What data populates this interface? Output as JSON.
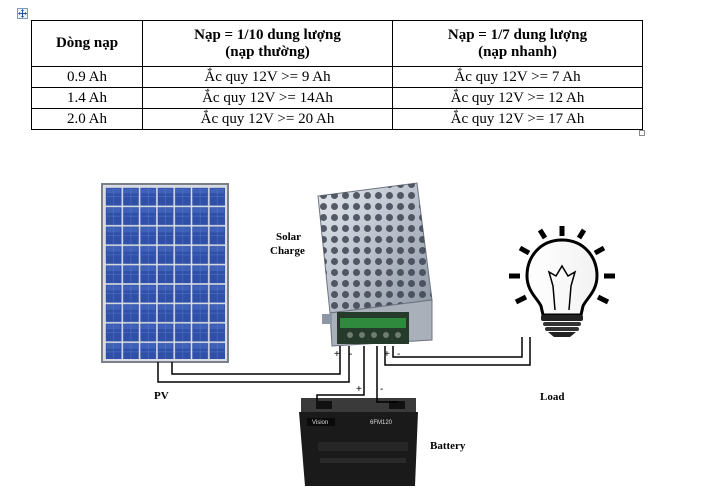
{
  "table": {
    "headers": [
      {
        "line1": "Dòng nạp",
        "line2": ""
      },
      {
        "line1": "Nạp = 1/10 dung lượng",
        "line2": "(nạp thường)"
      },
      {
        "line1": "Nạp = 1/7 dung lượng",
        "line2": "(nạp nhanh)"
      }
    ],
    "rows": [
      [
        "0.9 Ah",
        "Ắc quy 12V >= 9 Ah",
        "Ắc quy 12V >= 7  Ah"
      ],
      [
        "1.4 Ah",
        "Ắc quy 12V >= 14Ah",
        "Ắc quy 12V >= 12 Ah"
      ],
      [
        "2.0 Ah",
        "Ắc quy 12V >= 20 Ah",
        "Ắc quy 12V >= 17 Ah"
      ]
    ]
  },
  "diagram": {
    "labels": {
      "solar_line1": "Solar",
      "solar_line2": "Charge",
      "pv": "PV",
      "load": "Load",
      "battery": "Battery"
    },
    "polarity": {
      "plus": "+",
      "minus": "-"
    },
    "battery_brand": "Vision",
    "battery_model": "6FM120"
  }
}
